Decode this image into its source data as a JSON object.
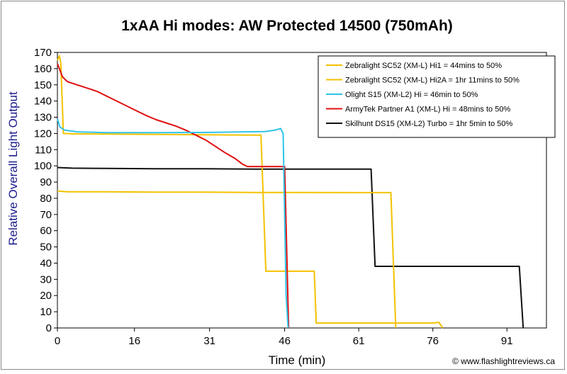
{
  "chart_data": {
    "type": "line",
    "title": "1xAA Hi modes: AW Protected 14500 (750mAh)",
    "xlabel": "Time (min)",
    "ylabel": "Relative Overall Light Output",
    "xlim": [
      0,
      99
    ],
    "ylim": [
      0,
      170
    ],
    "x_ticks": [
      "0",
      "16",
      "31",
      "46",
      "61",
      "76",
      "91"
    ],
    "x_tick_values": [
      0,
      15.6,
      30.8,
      46,
      61,
      76,
      91
    ],
    "y_ticks": [
      0,
      10,
      20,
      30,
      40,
      50,
      60,
      70,
      80,
      90,
      100,
      110,
      120,
      130,
      140,
      150,
      160,
      170
    ],
    "grid": false,
    "legend_position": "top-right",
    "series": [
      {
        "name": "Zebralight SC52 (XM-L) Hi1 = 44mins to 50%",
        "color": "#f2c200",
        "points": [
          [
            0,
            165
          ],
          [
            0.4,
            168
          ],
          [
            0.7,
            163
          ],
          [
            1.2,
            120
          ],
          [
            3,
            119.8
          ],
          [
            10,
            119.6
          ],
          [
            20,
            119.4
          ],
          [
            30,
            119.2
          ],
          [
            40,
            119
          ],
          [
            41.2,
            119
          ],
          [
            42.2,
            35
          ],
          [
            45,
            35
          ],
          [
            52,
            35
          ],
          [
            52.4,
            3
          ],
          [
            60,
            3
          ],
          [
            70,
            3
          ],
          [
            76,
            3
          ],
          [
            77.2,
            3.5
          ],
          [
            78,
            0
          ]
        ]
      },
      {
        "name": "Zebralight SC52 (XM-L) Hi2A = 1hr 11mins to 50%",
        "color": "#f2c200",
        "points": [
          [
            0,
            84.5
          ],
          [
            2,
            84
          ],
          [
            10,
            84
          ],
          [
            20,
            83.8
          ],
          [
            30,
            83.8
          ],
          [
            40,
            83.6
          ],
          [
            50,
            83.6
          ],
          [
            60,
            83.5
          ],
          [
            67.5,
            83.5
          ],
          [
            68.5,
            0
          ]
        ]
      },
      {
        "name": "Olight S15 (XM-L2) Hi = 46min to 50%",
        "color": "#2ec4e8",
        "points": [
          [
            0,
            129
          ],
          [
            0.5,
            124
          ],
          [
            1.5,
            122
          ],
          [
            4,
            121
          ],
          [
            10,
            120.5
          ],
          [
            20,
            120.5
          ],
          [
            30,
            120.6
          ],
          [
            38,
            121
          ],
          [
            42,
            121.2
          ],
          [
            44,
            122
          ],
          [
            45.2,
            123
          ],
          [
            45.7,
            120
          ],
          [
            46.3,
            20
          ],
          [
            46.7,
            0
          ]
        ]
      },
      {
        "name": "ArmyTek Partner A1 (XM-L) Hi = 48mins to 50%",
        "color": "#e01010",
        "points": [
          [
            0,
            163
          ],
          [
            0.4,
            160
          ],
          [
            1,
            155
          ],
          [
            2,
            152
          ],
          [
            4,
            150
          ],
          [
            6,
            148
          ],
          [
            8,
            146
          ],
          [
            10,
            143
          ],
          [
            12,
            140
          ],
          [
            14,
            137
          ],
          [
            16,
            134
          ],
          [
            18,
            131
          ],
          [
            20,
            128.5
          ],
          [
            22,
            126.5
          ],
          [
            24,
            124.5
          ],
          [
            26,
            122
          ],
          [
            28,
            119
          ],
          [
            30,
            116
          ],
          [
            32,
            112
          ],
          [
            34,
            108
          ],
          [
            36,
            104.5
          ],
          [
            37.5,
            101
          ],
          [
            38.5,
            99.6
          ],
          [
            43,
            99.6
          ],
          [
            46,
            99.6
          ],
          [
            46.4,
            50
          ],
          [
            46.8,
            0
          ]
        ]
      },
      {
        "name": "Skilhunt DS15 (XM-L2) Turbo = 1hr 5min to 50%",
        "color": "#111111",
        "points": [
          [
            0,
            99
          ],
          [
            3,
            98.6
          ],
          [
            10,
            98.4
          ],
          [
            20,
            98.2
          ],
          [
            30,
            98.2
          ],
          [
            40,
            98
          ],
          [
            50,
            98
          ],
          [
            60,
            98
          ],
          [
            63.5,
            98
          ],
          [
            64.3,
            38
          ],
          [
            70,
            38
          ],
          [
            80,
            38
          ],
          [
            93.5,
            38
          ],
          [
            94.3,
            0
          ]
        ]
      }
    ]
  },
  "credit": "© www.flashlightreviews.ca"
}
